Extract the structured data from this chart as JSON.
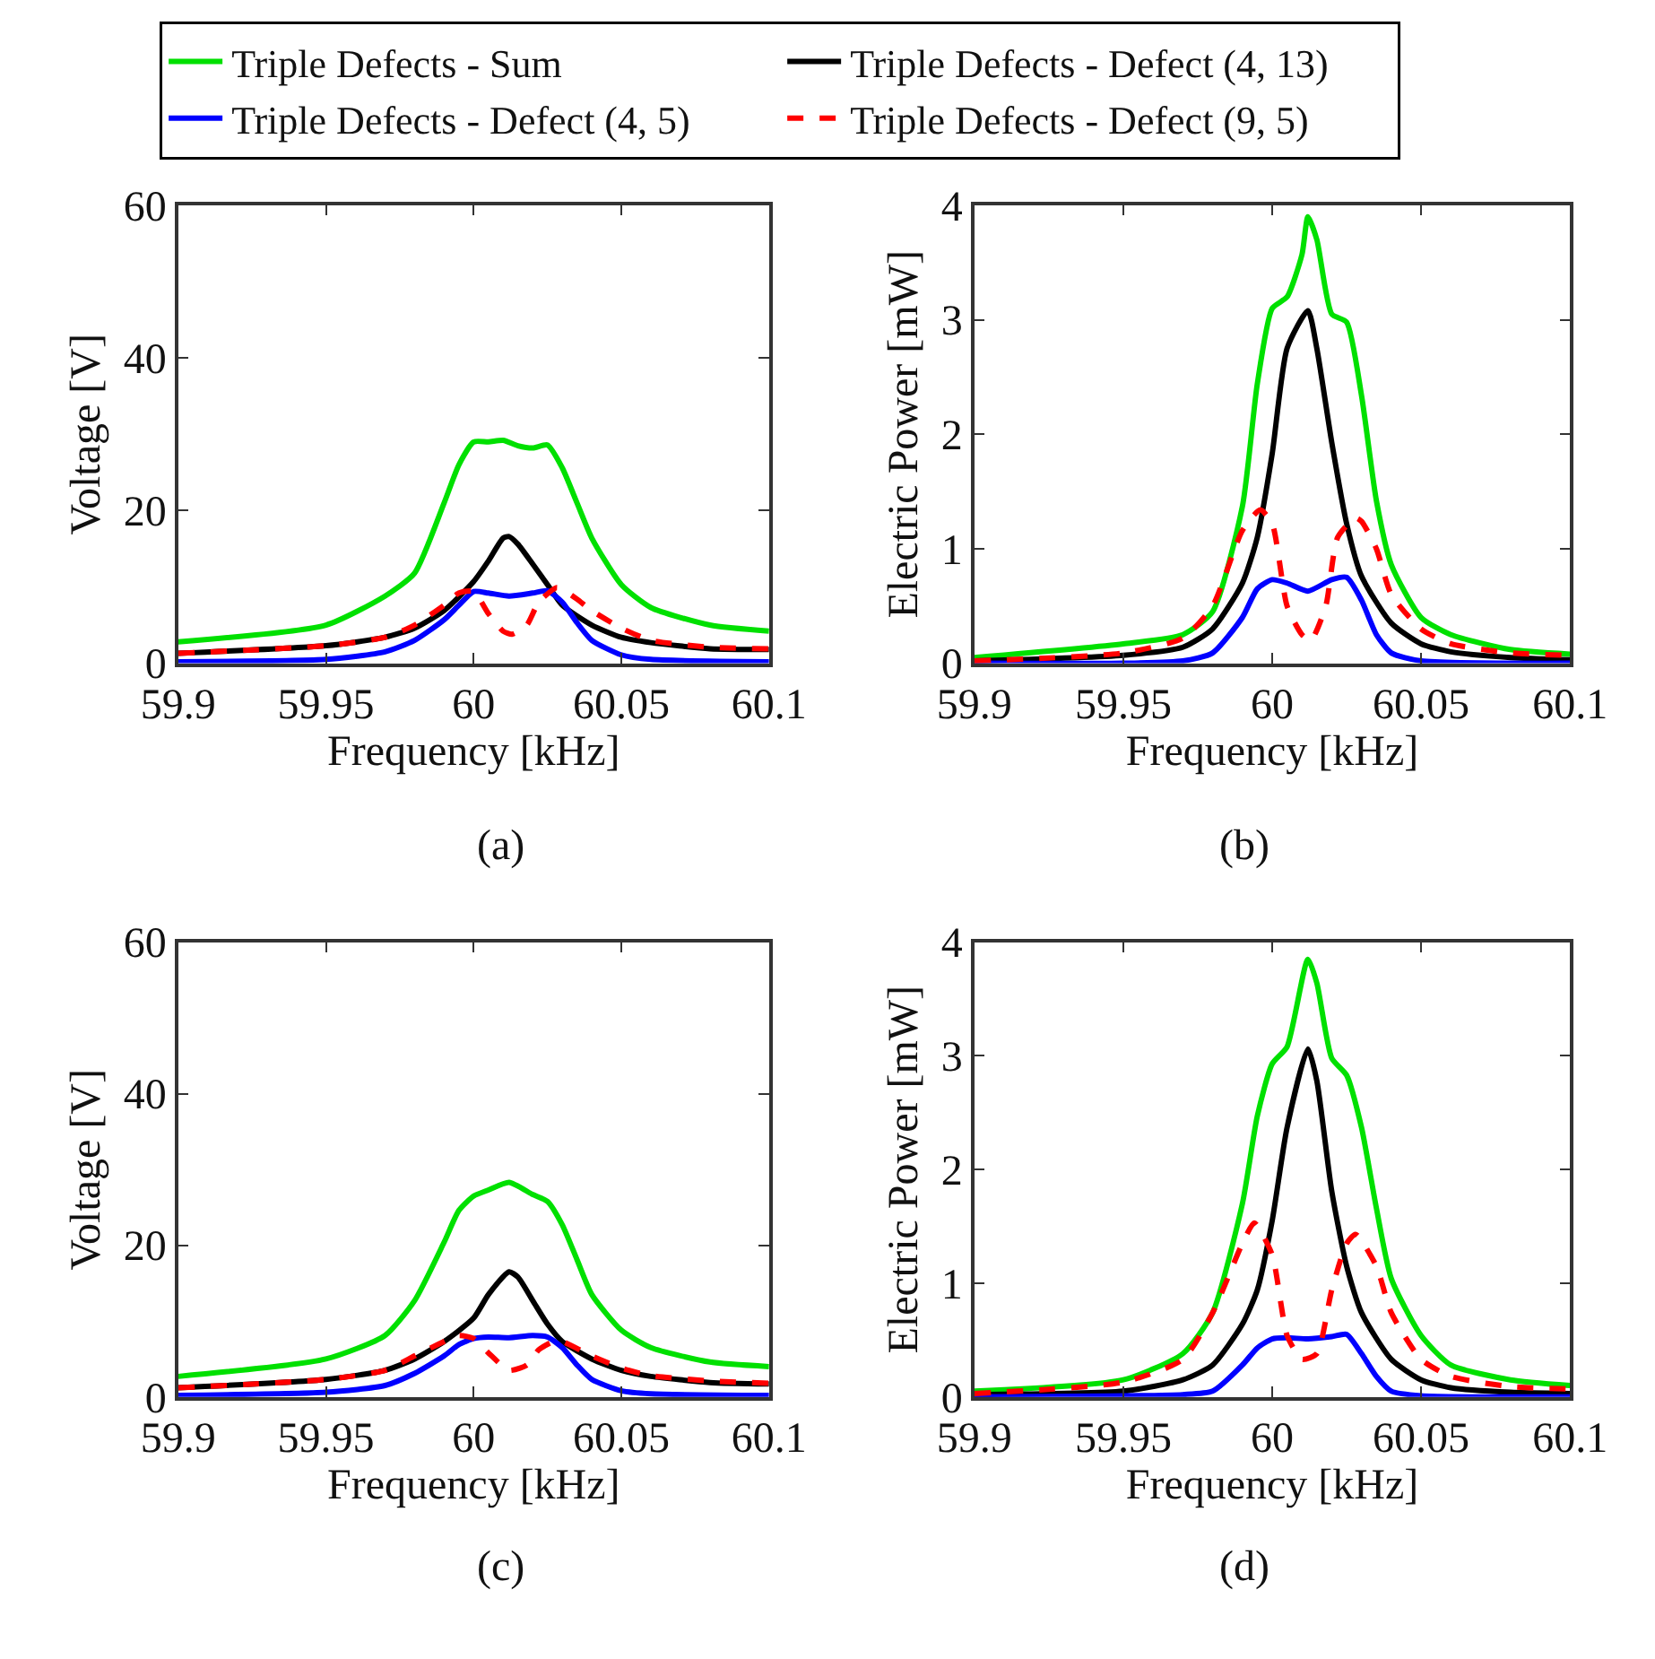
{
  "chart_data": [
    {
      "type": "line",
      "xlabel": "Frequency [kHz]",
      "ylabel": "Voltage [V]",
      "annotations": [
        "(a)"
      ],
      "xlim": [
        59.9,
        60.1
      ],
      "xticks": [
        59.9,
        59.95,
        60,
        60.05,
        60.1
      ],
      "ylim": [
        0,
        60
      ],
      "yticks": [
        0,
        20,
        40,
        60
      ],
      "legend": "top",
      "marker": "none",
      "series": [
        {
          "name": "Triple Defects - Sum",
          "color": "#00e000",
          "line_style": "solid",
          "x": [
            59.9,
            59.95,
            59.97,
            59.98,
            59.99,
            59.995,
            60,
            60.005,
            60.01,
            60.015,
            60.02,
            60.025,
            60.03,
            60.035,
            60.04,
            60.05,
            60.06,
            60.08,
            60.1
          ],
          "values": [
            2.8,
            5,
            8.8,
            11.8,
            21,
            26,
            29,
            29,
            29.2,
            28.5,
            28.2,
            28.6,
            25.6,
            21,
            16.4,
            10.3,
            7.3,
            5,
            4.2
          ]
        },
        {
          "name": "Triple Defects - Defect (4, 13)",
          "color": "#000000",
          "line_style": "solid",
          "x": [
            59.9,
            59.95,
            59.97,
            59.98,
            59.99,
            60,
            60.005,
            60.01,
            60.012,
            60.015,
            60.02,
            60.025,
            60.03,
            60.04,
            60.05,
            60.06,
            60.08,
            60.1
          ],
          "values": [
            1.3,
            2.3,
            3.4,
            4.6,
            6.9,
            10.7,
            13.4,
            16.4,
            16.6,
            15.6,
            13,
            10.3,
            7.6,
            5,
            3.4,
            2.7,
            1.9,
            1.8
          ]
        },
        {
          "name": "Triple Defects - Defect (4, 5)",
          "color": "#0000ff",
          "line_style": "solid",
          "x": [
            59.9,
            59.95,
            59.97,
            59.98,
            59.99,
            59.995,
            60,
            60.005,
            60.012,
            60.02,
            60.025,
            60.03,
            60.035,
            60.04,
            60.05,
            60.06,
            60.1
          ],
          "values": [
            0.2,
            0.5,
            1.5,
            3,
            5.7,
            7.6,
            9.4,
            9.2,
            8.8,
            9.2,
            9.5,
            8,
            5.3,
            3,
            1.1,
            0.5,
            0.2
          ]
        },
        {
          "name": "Triple Defects - Defect (9, 5)",
          "color": "#ff0000",
          "line_style": "dashed",
          "x": [
            59.9,
            59.95,
            59.97,
            59.98,
            59.99,
            59.995,
            60,
            60.005,
            60.01,
            60.013,
            60.018,
            60.022,
            60.028,
            60.03,
            60.035,
            60.04,
            60.05,
            60.06,
            60.08,
            60.1
          ],
          "values": [
            1.3,
            2.3,
            3.4,
            5,
            7.6,
            9.2,
            9.4,
            6.5,
            4.2,
            3.8,
            5,
            8,
            9.9,
            9.7,
            8.4,
            6.9,
            4.6,
            3,
            2.1,
            1.9
          ]
        }
      ]
    },
    {
      "type": "line",
      "xlabel": "Frequency [kHz]",
      "ylabel": "Electric Power [mW]",
      "annotations": [
        "(b)"
      ],
      "xlim": [
        59.9,
        60.1
      ],
      "xticks": [
        59.9,
        59.95,
        60,
        60.05,
        60.1
      ],
      "ylim": [
        0,
        4
      ],
      "yticks": [
        0,
        1,
        2,
        3,
        4
      ],
      "marker": "none",
      "series": [
        {
          "color": "#00e000",
          "line_style": "solid",
          "x": [
            59.9,
            59.95,
            59.97,
            59.98,
            59.99,
            59.995,
            60,
            60.005,
            60.01,
            60.012,
            60.015,
            60.02,
            60.025,
            60.03,
            60.035,
            60.04,
            60.05,
            60.06,
            60.08,
            60.1
          ],
          "values": [
            0.05,
            0.17,
            0.25,
            0.45,
            1.37,
            2.44,
            3.1,
            3.2,
            3.57,
            3.9,
            3.7,
            3.05,
            2.98,
            2.34,
            1.42,
            0.86,
            0.4,
            0.25,
            0.12,
            0.08
          ]
        },
        {
          "color": "#000000",
          "line_style": "solid",
          "x": [
            59.9,
            59.95,
            59.97,
            59.98,
            59.99,
            59.995,
            60,
            60.005,
            60.012,
            60.015,
            60.02,
            60.025,
            60.03,
            60.04,
            60.05,
            60.06,
            60.08,
            60.1
          ],
          "values": [
            0.02,
            0.07,
            0.14,
            0.3,
            0.7,
            1.1,
            1.83,
            2.75,
            3.08,
            2.75,
            1.93,
            1.22,
            0.76,
            0.35,
            0.17,
            0.1,
            0.05,
            0.03
          ]
        },
        {
          "color": "#0000ff",
          "line_style": "solid",
          "x": [
            59.9,
            59.95,
            59.97,
            59.98,
            59.99,
            59.995,
            60,
            60.005,
            60.012,
            60.02,
            60.025,
            60.03,
            60.035,
            60.04,
            60.05,
            60.1
          ],
          "values": [
            0,
            0,
            0.02,
            0.09,
            0.4,
            0.65,
            0.73,
            0.7,
            0.63,
            0.73,
            0.75,
            0.55,
            0.25,
            0.09,
            0.02,
            0
          ]
        },
        {
          "color": "#ff0000",
          "line_style": "dashed",
          "x": [
            59.9,
            59.95,
            59.97,
            59.98,
            59.99,
            59.996,
            60,
            60.005,
            60.01,
            60.013,
            60.018,
            60.022,
            60.028,
            60.03,
            60.035,
            60.04,
            60.05,
            60.06,
            60.08,
            60.1
          ],
          "values": [
            0.02,
            0.09,
            0.22,
            0.5,
            1.16,
            1.34,
            1.22,
            0.5,
            0.25,
            0.2,
            0.5,
            1.1,
            1.27,
            1.24,
            1,
            0.6,
            0.3,
            0.17,
            0.09,
            0.07
          ]
        }
      ]
    },
    {
      "type": "line",
      "xlabel": "Frequency [kHz]",
      "ylabel": "Voltage [V]",
      "annotations": [
        "(c)"
      ],
      "xlim": [
        59.9,
        60.1
      ],
      "xticks": [
        59.9,
        59.95,
        60,
        60.05,
        60.1
      ],
      "ylim": [
        0,
        60
      ],
      "yticks": [
        0,
        20,
        40,
        60
      ],
      "marker": "none",
      "series": [
        {
          "color": "#00e000",
          "line_style": "solid",
          "x": [
            59.9,
            59.95,
            59.97,
            59.98,
            59.99,
            59.995,
            60,
            60.005,
            60.012,
            60.02,
            60.025,
            60.03,
            60.035,
            60.04,
            60.05,
            60.06,
            60.08,
            60.1
          ],
          "values": [
            2.7,
            5,
            8.1,
            12.7,
            20.4,
            24.6,
            26.5,
            27.3,
            28.3,
            26.7,
            25.8,
            22.7,
            18.1,
            13.5,
            8.8,
            6.5,
            4.6,
            4
          ]
        },
        {
          "color": "#000000",
          "line_style": "solid",
          "x": [
            59.9,
            59.95,
            59.97,
            59.98,
            59.99,
            60,
            60.005,
            60.012,
            60.015,
            60.02,
            60.025,
            60.03,
            60.04,
            60.05,
            60.06,
            60.08,
            60.1
          ],
          "values": [
            1.2,
            2.3,
            3.5,
            5,
            7.3,
            10.4,
            13.5,
            16.5,
            15.8,
            12.7,
            9.6,
            7.3,
            5,
            3.5,
            2.7,
            1.9,
            1.7
          ]
        },
        {
          "color": "#0000ff",
          "line_style": "solid",
          "x": [
            59.9,
            59.95,
            59.97,
            59.98,
            59.99,
            59.995,
            60,
            60.005,
            60.012,
            60.02,
            60.025,
            60.03,
            60.035,
            60.04,
            60.05,
            60.06,
            60.1
          ],
          "values": [
            0.2,
            0.6,
            1.5,
            3.1,
            5.4,
            6.9,
            7.7,
            7.9,
            7.8,
            8.1,
            7.9,
            6.5,
            4.2,
            2.3,
            0.8,
            0.4,
            0.2
          ]
        },
        {
          "color": "#ff0000",
          "line_style": "dashed",
          "x": [
            59.9,
            59.95,
            59.97,
            59.98,
            59.99,
            59.995,
            60,
            60.005,
            60.012,
            60.018,
            60.022,
            60.027,
            60.03,
            60.04,
            60.05,
            60.06,
            60.08,
            60.1
          ],
          "values": [
            1.2,
            2.3,
            3.5,
            5.4,
            7.3,
            8.1,
            7.7,
            5.8,
            3.5,
            4.2,
            6.2,
            7.3,
            7.3,
            5.4,
            3.8,
            2.8,
            2.1,
            1.8
          ]
        }
      ]
    },
    {
      "type": "line",
      "xlabel": "Frequency [kHz]",
      "ylabel": "Electric Power [mW]",
      "annotations": [
        "(d)"
      ],
      "xlim": [
        59.9,
        60.1
      ],
      "xticks": [
        59.9,
        59.95,
        60,
        60.05,
        60.1
      ],
      "ylim": [
        0,
        4
      ],
      "yticks": [
        0,
        1,
        2,
        3,
        4
      ],
      "marker": "none",
      "series": [
        {
          "color": "#00e000",
          "line_style": "solid",
          "x": [
            59.9,
            59.95,
            59.97,
            59.98,
            59.99,
            59.995,
            60,
            60.005,
            60.012,
            60.015,
            60.02,
            60.025,
            60.03,
            60.035,
            60.04,
            60.05,
            60.06,
            60.08,
            60.1
          ],
          "values": [
            0.05,
            0.15,
            0.38,
            0.74,
            1.7,
            2.47,
            2.93,
            3.08,
            3.85,
            3.64,
            2.98,
            2.83,
            2.37,
            1.66,
            1.04,
            0.54,
            0.28,
            0.15,
            0.1
          ]
        },
        {
          "color": "#000000",
          "line_style": "solid",
          "x": [
            59.9,
            59.95,
            59.97,
            59.98,
            59.99,
            59.995,
            60,
            60.005,
            60.012,
            60.015,
            60.02,
            60.025,
            60.03,
            60.04,
            60.05,
            60.06,
            60.08,
            60.1
          ],
          "values": [
            0.02,
            0.05,
            0.15,
            0.28,
            0.64,
            0.94,
            1.55,
            2.37,
            3.06,
            2.78,
            1.81,
            1.15,
            0.74,
            0.33,
            0.15,
            0.08,
            0.04,
            0.03
          ]
        },
        {
          "color": "#0000ff",
          "line_style": "solid",
          "x": [
            59.9,
            59.97,
            59.98,
            59.99,
            59.995,
            60,
            60.005,
            60.012,
            60.02,
            60.025,
            60.03,
            60.035,
            60.04,
            60.05,
            60.1
          ],
          "values": [
            0,
            0.02,
            0.05,
            0.28,
            0.43,
            0.51,
            0.52,
            0.51,
            0.53,
            0.55,
            0.38,
            0.18,
            0.05,
            0.01,
            0
          ]
        },
        {
          "color": "#ff0000",
          "line_style": "dashed",
          "x": [
            59.9,
            59.95,
            59.97,
            59.98,
            59.99,
            59.994,
            60,
            60.005,
            60.01,
            60.015,
            60.02,
            60.025,
            60.028,
            60.035,
            60.04,
            60.05,
            60.06,
            60.08,
            60.1
          ],
          "values": [
            0.03,
            0.13,
            0.33,
            0.74,
            1.35,
            1.53,
            1.25,
            0.54,
            0.33,
            0.38,
            0.94,
            1.35,
            1.43,
            1.15,
            0.74,
            0.33,
            0.18,
            0.09,
            0.07
          ]
        }
      ]
    }
  ]
}
